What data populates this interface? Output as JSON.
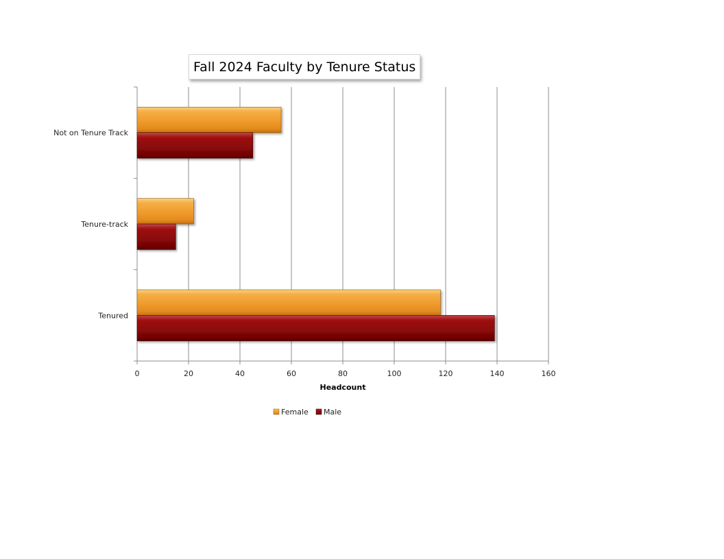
{
  "chart_data": {
    "type": "bar",
    "orientation": "horizontal",
    "title": "Fall 2024 Faculty by Tenure Status",
    "xlabel": "Headcount",
    "ylabel": "",
    "categories": [
      "Tenured",
      "Tenure-track",
      "Not on Tenure Track"
    ],
    "series": [
      {
        "name": "Female",
        "values": [
          118,
          22,
          56
        ],
        "color": "#F0A030"
      },
      {
        "name": "Male",
        "values": [
          139,
          15,
          45
        ],
        "color": "#8B0A0A"
      }
    ],
    "xlim": [
      0,
      160
    ],
    "xticks": [
      "0",
      "20",
      "40",
      "60",
      "80",
      "100",
      "120",
      "140",
      "160"
    ],
    "grid": "vertical major gridlines",
    "legend": "bottom"
  }
}
